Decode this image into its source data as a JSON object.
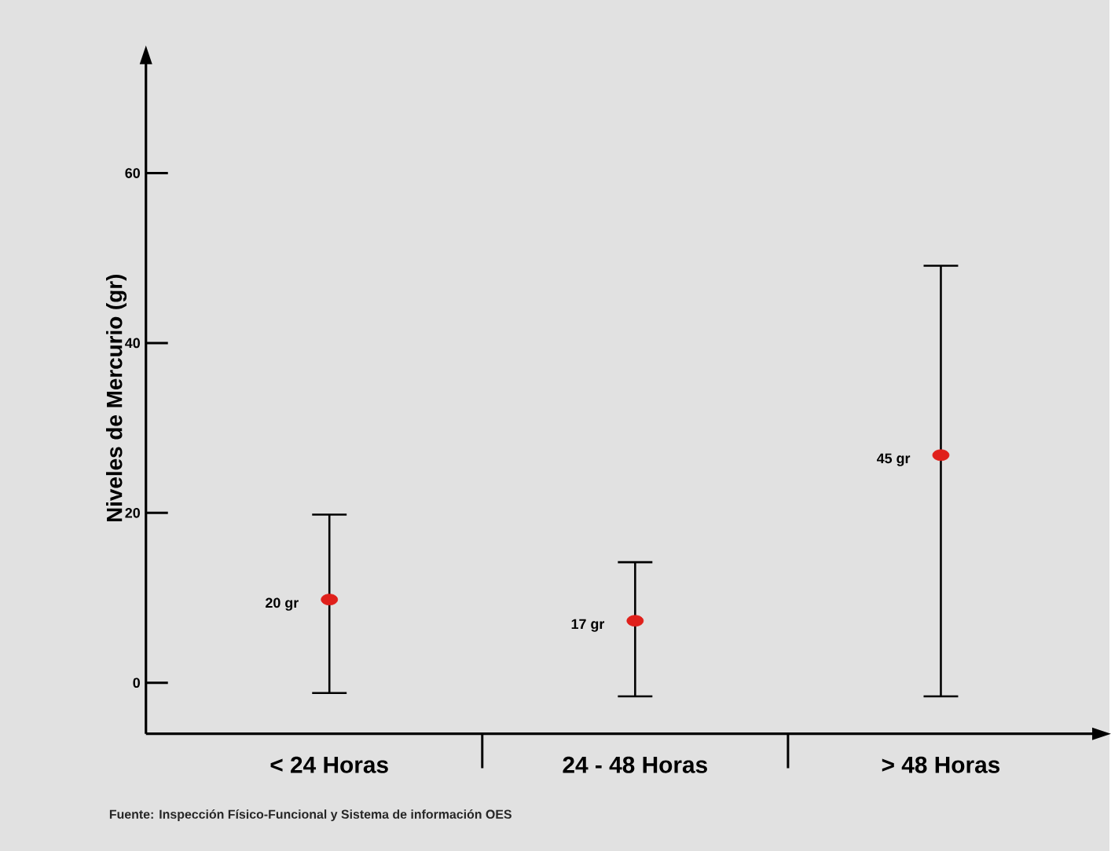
{
  "chart_data": {
    "type": "scatter",
    "ylabel": "Niveles de Mercurio (gr)",
    "categories": [
      "< 24 Horas",
      "24 - 48  Horas",
      "> 48  Horas"
    ],
    "values": [
      9.8,
      7.3,
      26.8
    ],
    "errors": [
      [
        -1.2,
        19.8
      ],
      [
        -1.6,
        14.2
      ],
      [
        -1.6,
        49.1
      ]
    ],
    "color": "#e0201b",
    "marker": "circle",
    "ylim": [
      -6,
      73
    ],
    "yticks": [
      0,
      20,
      40,
      60
    ],
    "annotations": [
      {
        "text": "20 gr",
        "x": "< 24 Horas",
        "y": 9.8
      },
      {
        "text": "17 gr",
        "x": "24 - 48  Horas",
        "y": 7.3
      },
      {
        "text": "45 gr",
        "x": "> 48  Horas",
        "y": 26.8
      },
      "Fuente: Inspección Físico-Funcional y Sistema de información OES"
    ]
  }
}
